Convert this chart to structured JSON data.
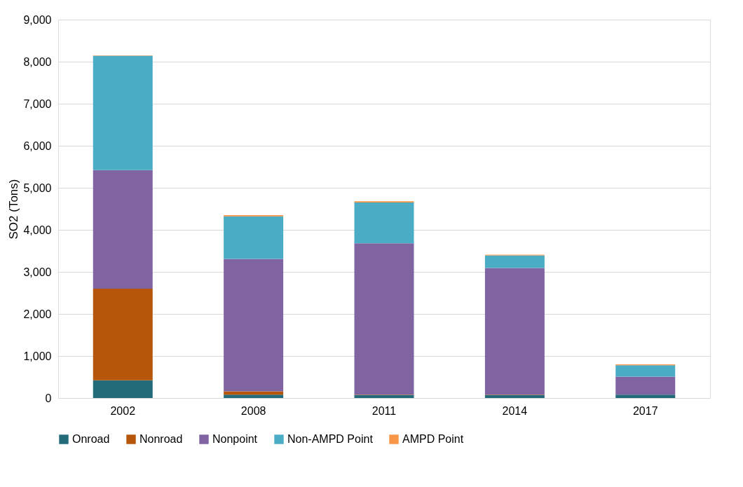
{
  "chart_data": {
    "type": "bar",
    "stacked": true,
    "ylabel": "SO2 (Tons)",
    "categories": [
      "2002",
      "2008",
      "2011",
      "2014",
      "2017"
    ],
    "series": [
      {
        "name": "Onroad",
        "color": "#246b7a",
        "values": [
          420,
          80,
          70,
          70,
          80
        ]
      },
      {
        "name": "Nonroad",
        "color": "#b5560a",
        "values": [
          2180,
          80,
          10,
          10,
          null
        ]
      },
      {
        "name": "Nonpoint",
        "color": "#8064a2",
        "values": [
          2820,
          3150,
          3600,
          3010,
          430
        ]
      },
      {
        "name": "Non-AMPD Point",
        "color": "#4bacc6",
        "values": [
          2720,
          1010,
          970,
          300,
          270
        ]
      },
      {
        "name": "AMPD Point",
        "color": "#f79646",
        "values": [
          10,
          30,
          30,
          20,
          20
        ]
      }
    ],
    "ylim": [
      0,
      9000
    ],
    "yticks": [
      0,
      {
        "value": 1000,
        "label": "1,000"
      },
      {
        "value": 2000,
        "label": "2,000"
      },
      {
        "value": 3000,
        "label": "3,000"
      },
      {
        "value": 4000,
        "label": "4,000"
      },
      {
        "value": 5000,
        "label": "5,000"
      },
      {
        "value": 6000,
        "label": "6,000"
      },
      {
        "value": 7000,
        "label": "7,000"
      },
      {
        "value": 8000,
        "label": "8,000"
      },
      {
        "value": 9000,
        "label": "9,000"
      }
    ],
    "grid": "y",
    "legend": "bottom"
  }
}
